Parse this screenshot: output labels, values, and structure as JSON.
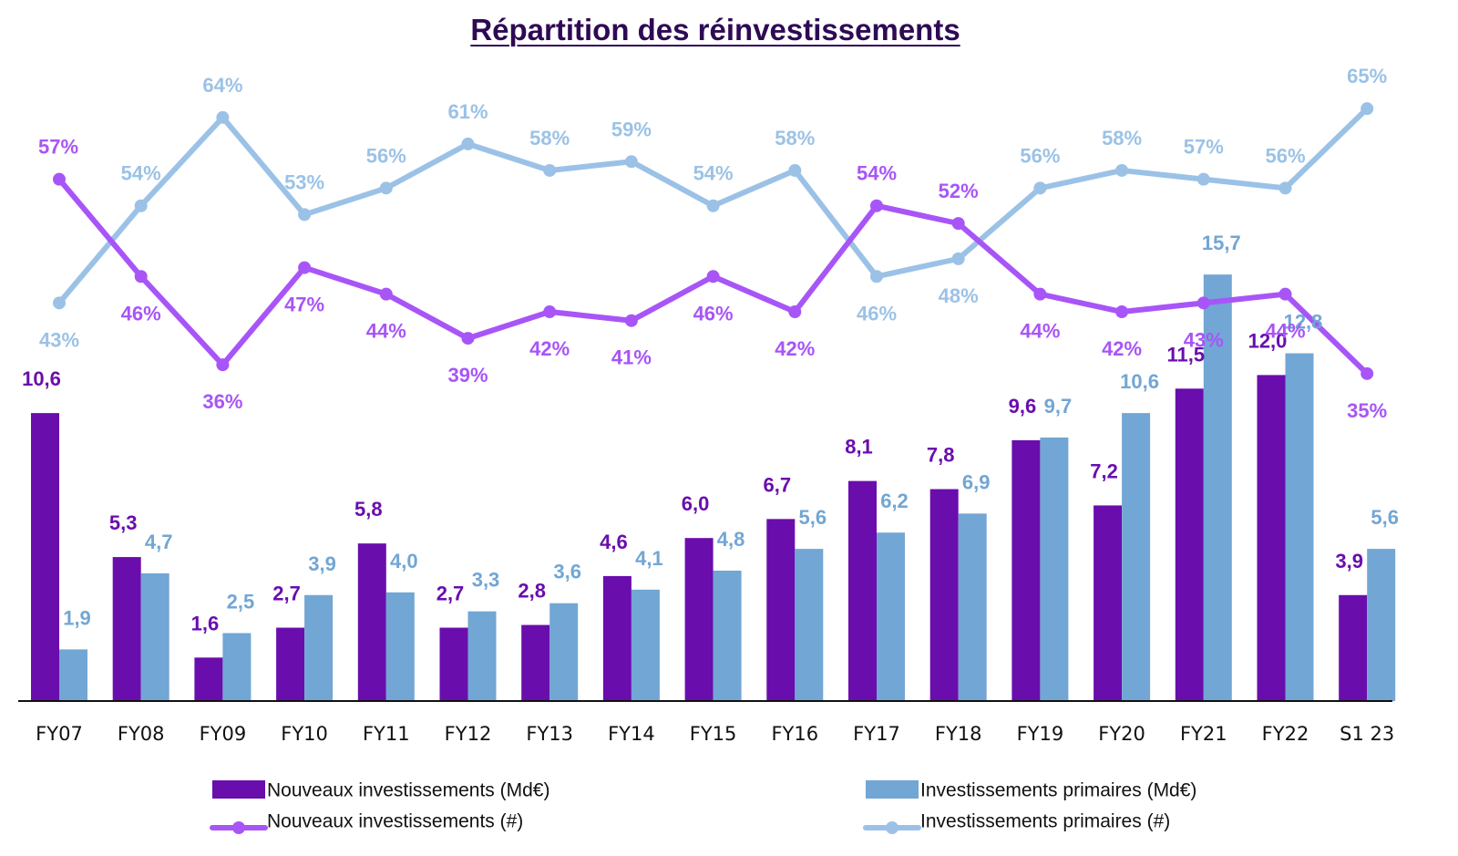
{
  "chart_data": {
    "type": "bar",
    "title": "Répartition des réinvestissements",
    "xlabel": "",
    "ylabel": "",
    "categories": [
      "FY07",
      "FY08",
      "FY09",
      "FY10",
      "FY11",
      "FY12",
      "FY13",
      "FY14",
      "FY15",
      "FY16",
      "FY17",
      "FY18",
      "FY19",
      "FY20",
      "FY21",
      "FY22",
      "S1 23"
    ],
    "series": [
      {
        "name": "Nouveaux investissements (Md€)",
        "kind": "bar",
        "color": "#6a0dad",
        "values": [
          10.6,
          5.3,
          1.6,
          2.7,
          5.8,
          2.7,
          2.8,
          4.6,
          6.0,
          6.7,
          8.1,
          7.8,
          9.6,
          7.2,
          11.5,
          12.0,
          3.9
        ],
        "labels": [
          "10,6",
          "5,3",
          "1,6",
          "2,7",
          "5,8",
          "2,7",
          "2,8",
          "4,6",
          "6,0",
          "6,7",
          "8,1",
          "7,8",
          "9,6",
          "7,2",
          "11,5",
          "12,0",
          "3,9"
        ]
      },
      {
        "name": "Investissements primaires (Md€)",
        "kind": "bar",
        "color": "#72a6d4",
        "values": [
          1.9,
          4.7,
          2.5,
          3.9,
          4.0,
          3.3,
          3.6,
          4.1,
          4.8,
          5.6,
          6.2,
          6.9,
          9.7,
          10.6,
          15.7,
          12.8,
          5.6
        ],
        "labels": [
          "1,9",
          "4,7",
          "2,5",
          "3,9",
          "4,0",
          "3,3",
          "3,6",
          "4,1",
          "4,8",
          "5,6",
          "6,2",
          "6,9",
          "9,7",
          "10,6",
          "15,7",
          "12,8",
          "5,6"
        ]
      },
      {
        "name": "Nouveaux investissements (#)",
        "kind": "line",
        "color": "#a855f7",
        "unit": "%",
        "values": [
          57,
          46,
          36,
          47,
          44,
          39,
          42,
          41,
          46,
          42,
          54,
          52,
          44,
          42,
          43,
          44,
          35
        ],
        "labels": [
          "57%",
          "46%",
          "36%",
          "47%",
          "44%",
          "39%",
          "42%",
          "41%",
          "46%",
          "42%",
          "54%",
          "52%",
          "44%",
          "42%",
          "43%",
          "44%",
          "35%"
        ]
      },
      {
        "name": "Investissements primaires (#)",
        "kind": "line",
        "color": "#9bc2e6",
        "unit": "%",
        "values": [
          43,
          54,
          64,
          53,
          56,
          61,
          58,
          59,
          54,
          58,
          46,
          48,
          56,
          58,
          57,
          56,
          65
        ],
        "labels": [
          "43%",
          "54%",
          "64%",
          "53%",
          "56%",
          "61%",
          "58%",
          "59%",
          "54%",
          "58%",
          "46%",
          "48%",
          "56%",
          "58%",
          "57%",
          "56%",
          "65%"
        ]
      }
    ],
    "bar_ylim": [
      0,
      17
    ],
    "line_ylim": [
      0,
      100
    ],
    "grid": false,
    "legend": "bottom",
    "legend_entries": [
      "Nouveaux investissements (Md€)",
      "Investissements primaires (Md€)",
      "Nouveaux investissements (#)",
      "Investissements primaires (#)"
    ],
    "title_color": "#2e0a55",
    "purple_label_color": "#6a0dad",
    "blue_label_color": "#72a6d4"
  }
}
